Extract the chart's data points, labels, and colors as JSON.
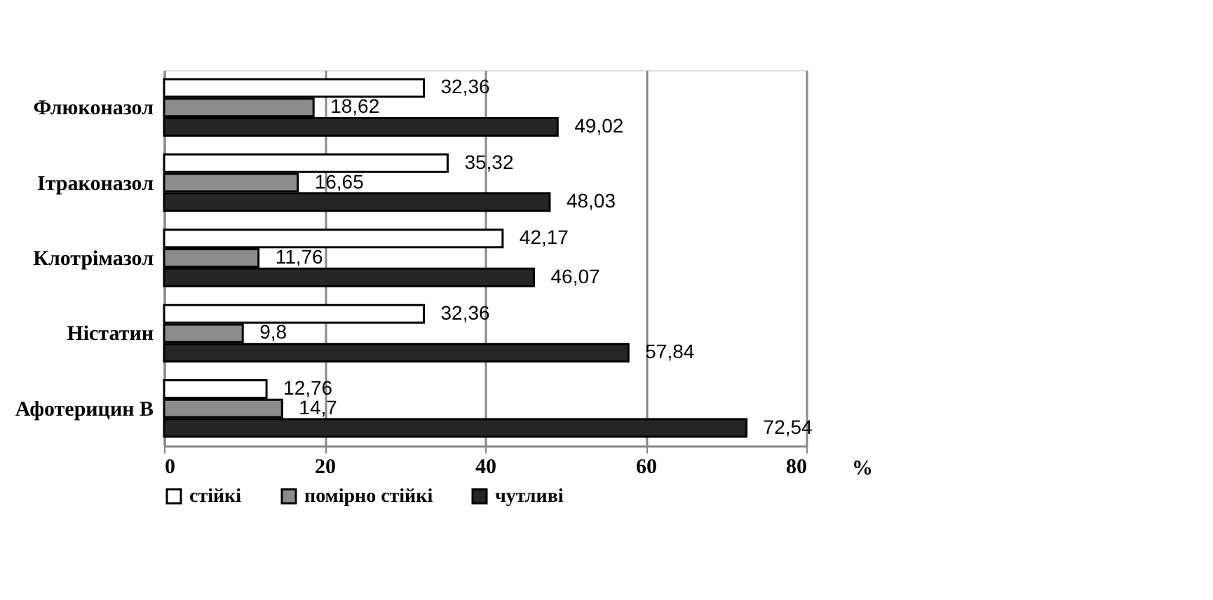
{
  "chart_data": {
    "type": "bar",
    "orientation": "horizontal",
    "xlabel": "%",
    "categories": [
      "Флюконазол",
      "Ітраконазол",
      "Клотрімазол",
      "Ністатин",
      "Афотерицин В"
    ],
    "series": [
      {
        "name": "стійкі",
        "color": "#ffffff",
        "values": [
          32.36,
          35.32,
          42.17,
          32.36,
          12.76
        ],
        "value_labels": [
          "32,36",
          "35,32",
          "42,17",
          "32,36",
          "12,76"
        ]
      },
      {
        "name": "помірно стійкі",
        "color": "#8c8c8c",
        "values": [
          18.62,
          16.65,
          11.76,
          9.8,
          14.7
        ],
        "value_labels": [
          "18,62",
          "16,65",
          "11,76",
          "9,8",
          "14,7"
        ]
      },
      {
        "name": "чутливі",
        "color": "#262626",
        "values": [
          49.02,
          48.03,
          46.07,
          57.84,
          72.54
        ],
        "value_labels": [
          "49,02",
          "48,03",
          "46,07",
          "57,84",
          "72,54"
        ]
      }
    ],
    "xlim": [
      0,
      80
    ],
    "xticks": [
      0,
      20,
      40,
      60,
      80
    ],
    "grid": "x",
    "legend": "bottom"
  }
}
